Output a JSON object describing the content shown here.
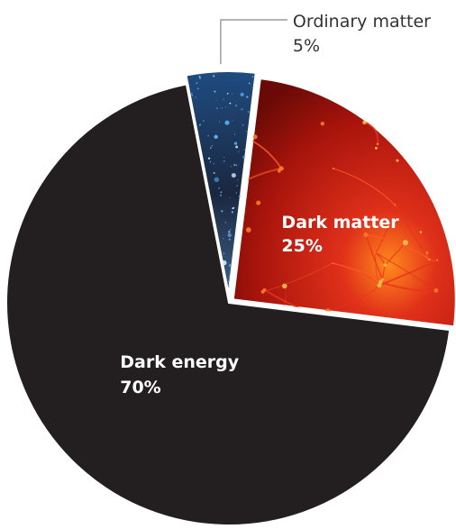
{
  "chart_data": {
    "type": "pie",
    "title": "",
    "start_angle_deg": -11,
    "slices": [
      {
        "label": "Ordinary matter",
        "value_label": "5%",
        "value": 5,
        "color": "#2a3c58",
        "texture": "stars",
        "exploded": true
      },
      {
        "label": "Dark matter",
        "value_label": "25%",
        "value": 25,
        "color": "#c41e12",
        "texture": "web",
        "exploded": true
      },
      {
        "label": "Dark energy",
        "value_label": "70%",
        "value": 70,
        "color": "#231f20",
        "texture": "none",
        "exploded": false
      }
    ]
  }
}
